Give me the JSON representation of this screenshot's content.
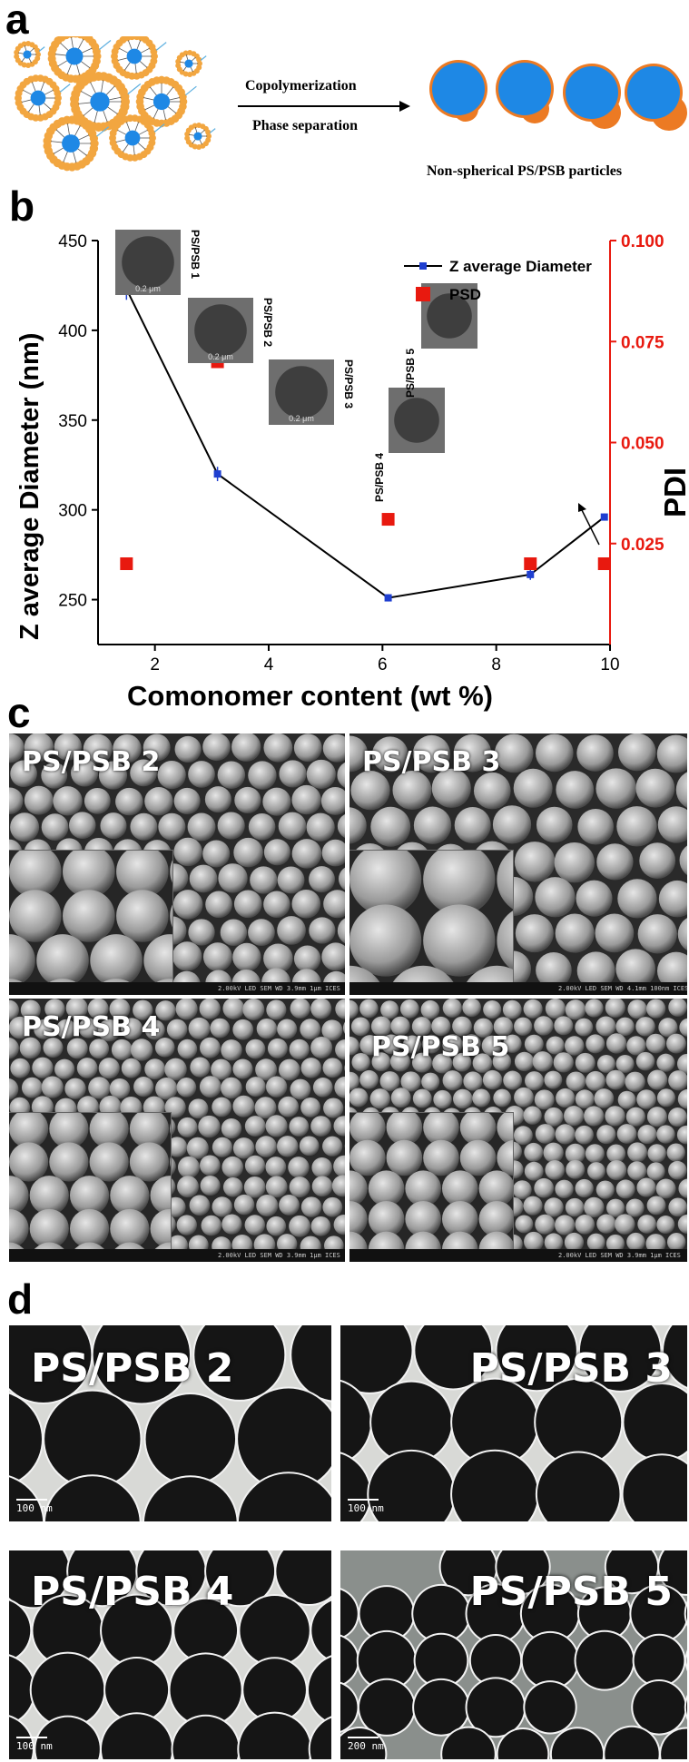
{
  "panels": {
    "a": "a",
    "b": "b",
    "c": "c",
    "d": "d"
  },
  "schematic": {
    "arrow_top": "Copolymerization",
    "arrow_bottom": "Phase separation",
    "caption": "Non-spherical PS/PSB particles",
    "colors": {
      "shell": "#ec7a23",
      "core": "#1e88e5",
      "bead": "#f2a640"
    }
  },
  "chart_data": {
    "type": "scatter",
    "xlabel": "Comonomer content (wt %)",
    "ylabel_left": "Z average Diameter (nm)",
    "ylabel_right": "PDI",
    "xlim": [
      1,
      10
    ],
    "ylim_left": [
      225,
      450
    ],
    "ylim_right": [
      0.0,
      0.1
    ],
    "x_ticks": [
      "2",
      "4",
      "6",
      "8",
      "10"
    ],
    "y_left_ticks": [
      "250",
      "300",
      "350",
      "400",
      "450"
    ],
    "y_right_ticks": [
      "0.025",
      "0.050",
      "0.075",
      "0.100"
    ],
    "legend": [
      "Z average Diameter",
      "PSD"
    ],
    "series": [
      {
        "name": "Z average Diameter",
        "axis": "left",
        "color": "#1f3fd0",
        "x": [
          1.5,
          3.1,
          6.1,
          8.6,
          9.9
        ],
        "y": [
          423,
          320,
          251,
          264,
          296
        ],
        "err": [
          6,
          4,
          2,
          3,
          2
        ]
      },
      {
        "name": "PSD",
        "axis": "right",
        "color": "#e8190f",
        "x": [
          1.5,
          3.1,
          6.1,
          8.6,
          9.9
        ],
        "y": [
          0.02,
          0.07,
          0.031,
          0.02,
          0.02
        ]
      }
    ],
    "insets": [
      {
        "label": "PS/PSB 1",
        "scale": "0.2 μm"
      },
      {
        "label": "PS/PSB 2",
        "scale": "0.2 μm"
      },
      {
        "label": "PS/PSB 3",
        "scale": "0.2 μm"
      },
      {
        "label": "PS/PSB 4",
        "scale": ""
      },
      {
        "label": "PS/PSB 5",
        "scale": ""
      }
    ]
  },
  "sem": [
    {
      "label": "PS/PSB 2",
      "info": "2.00kV LED   SEM   WD 3.9mm   1μm  ICES"
    },
    {
      "label": "PS/PSB 3",
      "info": "2.00kV LED   SEM   WD 4.1mm   100nm ICES"
    },
    {
      "label": "PS/PSB 4",
      "info": "2.00kV LED   SEM   WD 3.9mm   1μm  ICES"
    },
    {
      "label": "PS/PSB 5",
      "info": "2.00kV LED   SEM   WD 3.9mm   1μm  ICES"
    }
  ],
  "tem": [
    {
      "label": "PS/PSB 2",
      "scale": "100 nm"
    },
    {
      "label": "PS/PSB 3",
      "scale": "100 nm"
    },
    {
      "label": "PS/PSB 4",
      "scale": "100 nm"
    },
    {
      "label": "PS/PSB 5",
      "scale": "200 nm"
    }
  ]
}
